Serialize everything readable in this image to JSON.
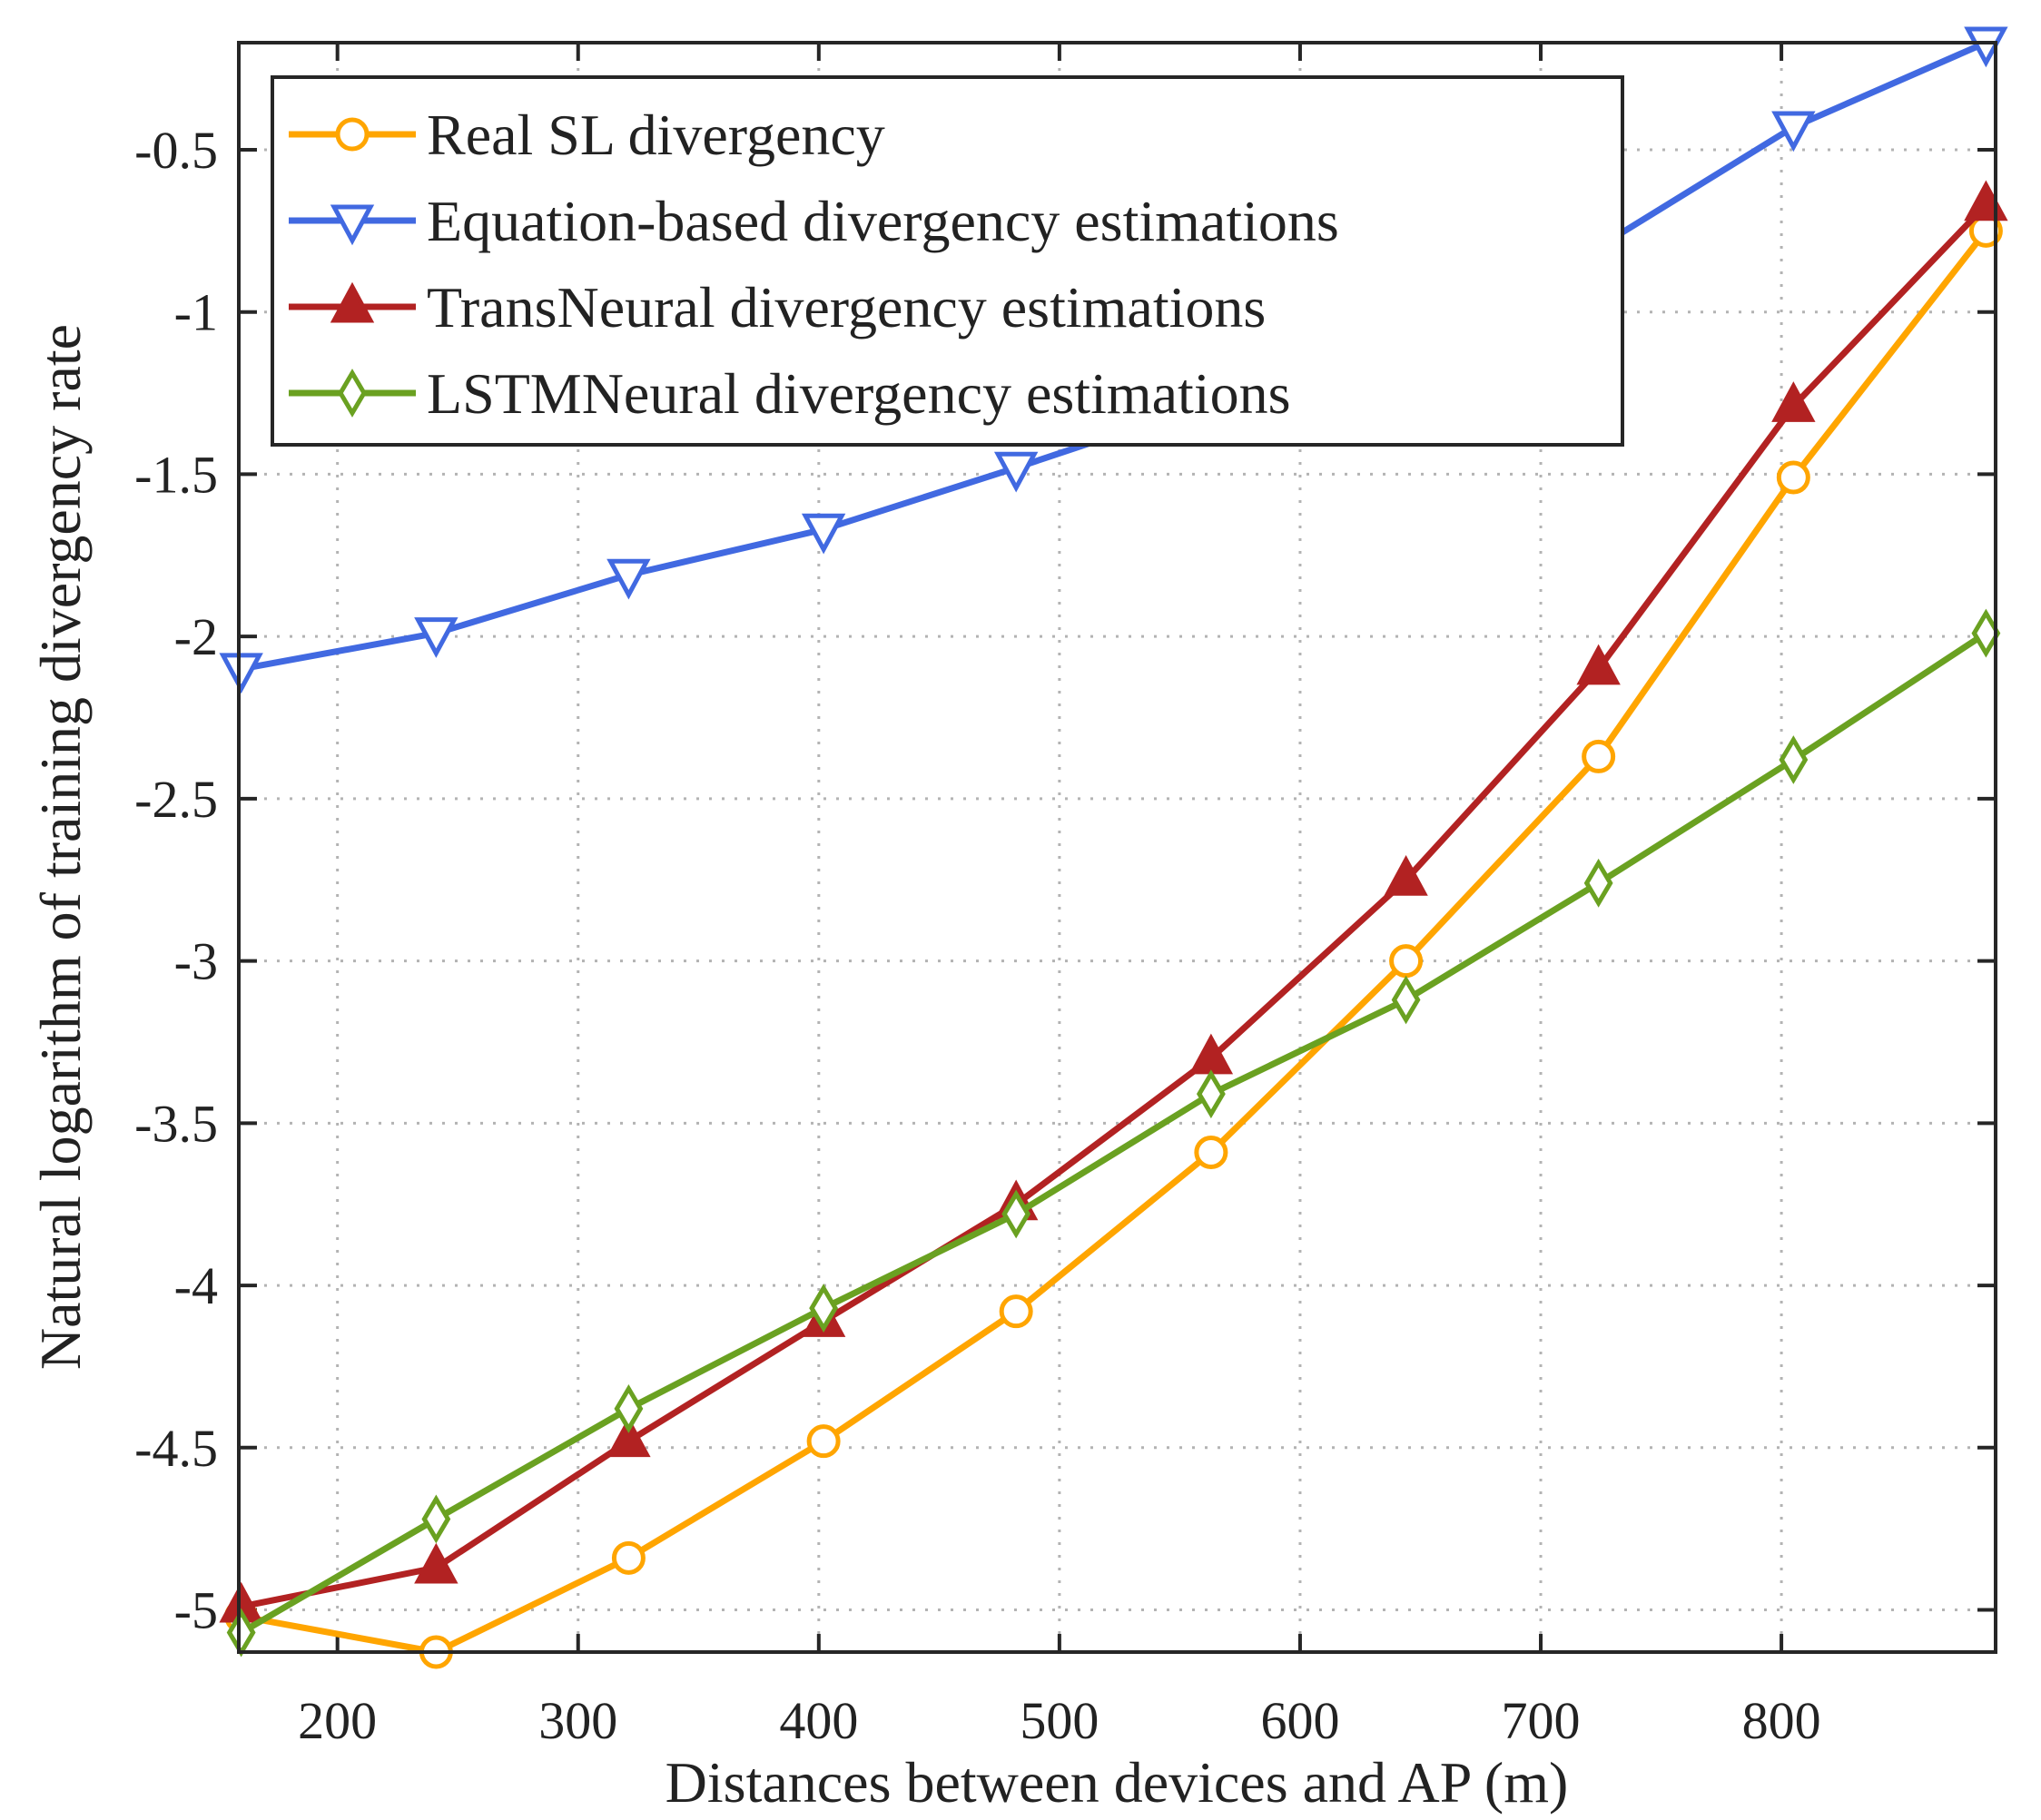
{
  "chart_data": {
    "type": "line",
    "title": "",
    "xlabel": "Distances between devices and AP (m)",
    "ylabel": "Natural logarithm of training divergency rate",
    "xlim": [
      159,
      889
    ],
    "ylim": [
      -5.13,
      -0.17
    ],
    "xticks": [
      200,
      300,
      400,
      500,
      600,
      700,
      800
    ],
    "yticks": [
      -5,
      -4.5,
      -4,
      -3.5,
      -3,
      -2.5,
      -2,
      -1.5,
      -1,
      -0.5
    ],
    "ytick_labels": [
      "-5",
      "-4.5",
      "-4",
      "-3.5",
      "-3",
      "-2.5",
      "-2",
      "-1.5",
      "-1",
      "-0.5"
    ],
    "grid": true,
    "legend_position": "top-left",
    "x": [
      160,
      241,
      321,
      402,
      482,
      563,
      644,
      724,
      805,
      885
    ],
    "series": [
      {
        "name": "Real SL divergency",
        "color": "#FFA500",
        "marker": "circle",
        "values": [
          -5.02,
          -5.13,
          -4.84,
          -4.48,
          -4.08,
          -3.59,
          -3.0,
          -2.37,
          -1.51,
          -0.75
        ]
      },
      {
        "name": "Equation-based divergency estimations",
        "color": "#4169E1",
        "marker": "triangle-down",
        "values": [
          -2.1,
          -1.99,
          -1.81,
          -1.67,
          -1.48,
          -1.28,
          -1.05,
          -0.8,
          -0.43,
          -0.17
        ]
      },
      {
        "name": "TransNeural divergency estimations",
        "color": "#B22222",
        "marker": "triangle-up",
        "values": [
          -4.99,
          -4.87,
          -4.48,
          -4.11,
          -3.75,
          -3.3,
          -2.75,
          -2.1,
          -1.29,
          -0.67
        ]
      },
      {
        "name": "LSTMNeural divergency estimations",
        "color": "#6AA121",
        "marker": "diamond",
        "values": [
          -5.07,
          -4.72,
          -4.38,
          -4.07,
          -3.78,
          -3.41,
          -3.12,
          -2.76,
          -2.38,
          -1.99
        ]
      }
    ]
  }
}
